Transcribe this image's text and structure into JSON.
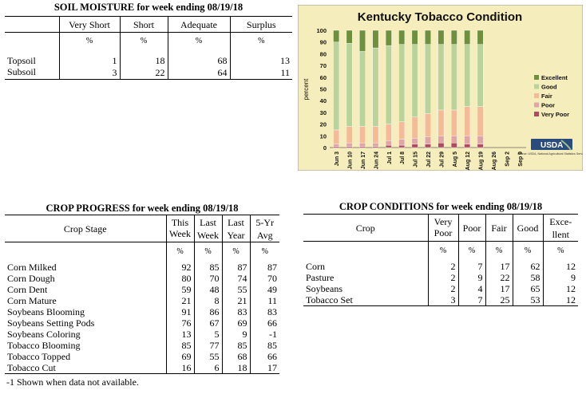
{
  "soil_moisture": {
    "title": "SOIL MOISTURE for week ending 08/19/18",
    "columns": [
      "Very Short",
      "Short",
      "Adequate",
      "Surplus"
    ],
    "unit": "%",
    "rows": [
      {
        "label": "Topsoil",
        "values": [
          "1",
          "18",
          "68",
          "13"
        ]
      },
      {
        "label": "Subsoil",
        "values": [
          "3",
          "22",
          "64",
          "11"
        ]
      }
    ]
  },
  "crop_progress": {
    "title": "CROP PROGRESS for week ending 08/19/18",
    "stage_header": "Crop Stage",
    "columns": [
      {
        "l1": "This",
        "l2": "Week"
      },
      {
        "l1": "Last",
        "l2": "Week"
      },
      {
        "l1": "Last",
        "l2": "Year"
      },
      {
        "l1": "5-Yr",
        "l2": "Avg"
      }
    ],
    "unit": "%",
    "rows": [
      {
        "label": "Corn Milked",
        "values": [
          "92",
          "85",
          "87",
          "87"
        ]
      },
      {
        "label": "Corn Dough",
        "values": [
          "80",
          "70",
          "74",
          "70"
        ]
      },
      {
        "label": "Corn Dent",
        "values": [
          "59",
          "48",
          "55",
          "49"
        ]
      },
      {
        "label": "Corn Mature",
        "values": [
          "21",
          "8",
          "21",
          "11"
        ]
      },
      {
        "label": "Soybeans Blooming",
        "values": [
          "91",
          "86",
          "83",
          "83"
        ]
      },
      {
        "label": "Soybeans Setting Pods",
        "values": [
          "76",
          "67",
          "69",
          "66"
        ]
      },
      {
        "label": "Soybeans Coloring",
        "values": [
          "13",
          "5",
          "9",
          "-1"
        ]
      },
      {
        "label": "Tobacco Blooming",
        "values": [
          "85",
          "77",
          "85",
          "85"
        ]
      },
      {
        "label": "Tobacco Topped",
        "values": [
          "69",
          "55",
          "68",
          "66"
        ]
      },
      {
        "label": "Tobacco Cut",
        "values": [
          "16",
          "6",
          "18",
          "17"
        ]
      }
    ],
    "footnote": "-1 Shown when data not available."
  },
  "crop_conditions": {
    "title": "CROP CONDITIONS for week ending 08/19/18",
    "crop_header": "Crop",
    "columns": [
      {
        "l1": "Very",
        "l2": "Poor"
      },
      {
        "l1": "Poor",
        "l2": ""
      },
      {
        "l1": "Fair",
        "l2": ""
      },
      {
        "l1": "Good",
        "l2": ""
      },
      {
        "l1": "Exce-",
        "l2": "llent"
      }
    ],
    "unit": "%",
    "rows": [
      {
        "label": "Corn",
        "values": [
          "2",
          "7",
          "17",
          "62",
          "12"
        ]
      },
      {
        "label": "Pasture",
        "values": [
          "2",
          "9",
          "22",
          "58",
          "9"
        ]
      },
      {
        "label": "Soybeans",
        "values": [
          "2",
          "4",
          "17",
          "65",
          "12"
        ]
      },
      {
        "label": "Tobacco Set",
        "values": [
          "3",
          "7",
          "25",
          "53",
          "12"
        ]
      }
    ]
  },
  "colors": {
    "chart_bg": "#f5edbb",
    "plot_bg": "#f5edbb",
    "very_poor": "#b04a5e",
    "poor": "#e2a5a5",
    "fair": "#f4bb96",
    "good": "#b9d39a",
    "excellent": "#6e8f3e"
  },
  "chart_data": {
    "type": "bar",
    "stacked": true,
    "title": "Kentucky Tobacco Condition",
    "ylabel": "percent",
    "ylim": [
      0,
      100
    ],
    "yticks": [
      "0",
      "10",
      "20",
      "30",
      "40",
      "50",
      "60",
      "70",
      "80",
      "90",
      "100"
    ],
    "categories": [
      "Jun 3",
      "Jun 10",
      "Jun 17",
      "Jun 24",
      "Jul 1",
      "Jul 8",
      "Jul 15",
      "Jul 22",
      "Jul 29",
      "Aug 5",
      "Aug 12",
      "Aug 19",
      "Aug 26",
      "Sep 2",
      "Sep 9"
    ],
    "legend_position": "right",
    "series": [
      {
        "name": "Very Poor",
        "values": [
          1,
          1,
          1,
          1,
          2,
          2,
          3,
          3,
          4,
          4,
          3,
          3,
          null,
          null,
          null
        ]
      },
      {
        "name": "Poor",
        "values": [
          2,
          3,
          3,
          3,
          4,
          5,
          5,
          6,
          6,
          6,
          7,
          7,
          null,
          null,
          null
        ]
      },
      {
        "name": "Fair",
        "values": [
          12,
          14,
          14,
          14,
          14,
          15,
          18,
          20,
          22,
          22,
          25,
          25,
          null,
          null,
          null
        ]
      },
      {
        "name": "Good",
        "values": [
          75,
          71,
          64,
          67,
          67,
          66,
          62,
          59,
          56,
          56,
          53,
          53,
          null,
          null,
          null
        ]
      },
      {
        "name": "Excellent",
        "values": [
          10,
          11,
          18,
          15,
          13,
          12,
          12,
          12,
          12,
          12,
          12,
          12,
          null,
          null,
          null
        ]
      }
    ],
    "legend_order": [
      "Excellent",
      "Good",
      "Fair",
      "Poor",
      "Very Poor"
    ],
    "logo_text": "USDA",
    "source_note": "Source: USDA, National Agricultural Statistics Service"
  }
}
